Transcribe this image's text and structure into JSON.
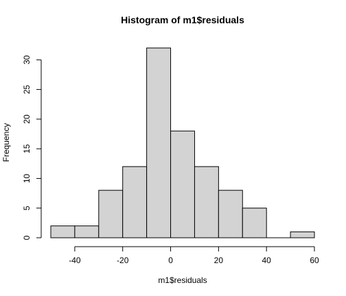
{
  "chart_data": {
    "type": "bar",
    "title": "Histogram of m1$residuals",
    "xlabel": "m1$residuals",
    "ylabel": "Frequency",
    "bins": [
      {
        "start": -50,
        "end": -40,
        "count": 2
      },
      {
        "start": -40,
        "end": -30,
        "count": 2
      },
      {
        "start": -30,
        "end": -20,
        "count": 8
      },
      {
        "start": -20,
        "end": -10,
        "count": 12
      },
      {
        "start": -10,
        "end": 0,
        "count": 32
      },
      {
        "start": 0,
        "end": 10,
        "count": 18
      },
      {
        "start": 10,
        "end": 20,
        "count": 12
      },
      {
        "start": 20,
        "end": 30,
        "count": 8
      },
      {
        "start": 30,
        "end": 40,
        "count": 5
      },
      {
        "start": 40,
        "end": 50,
        "count": 0
      },
      {
        "start": 50,
        "end": 60,
        "count": 1
      }
    ],
    "xlim": [
      -50,
      60
    ],
    "ylim": [
      0,
      32
    ],
    "xticks": [
      -40,
      -20,
      0,
      20,
      40,
      60
    ],
    "yticks": [
      0,
      5,
      10,
      15,
      20,
      25,
      30
    ],
    "bar_fill": "#d3d3d3",
    "bar_stroke": "#000000",
    "grid": false
  }
}
